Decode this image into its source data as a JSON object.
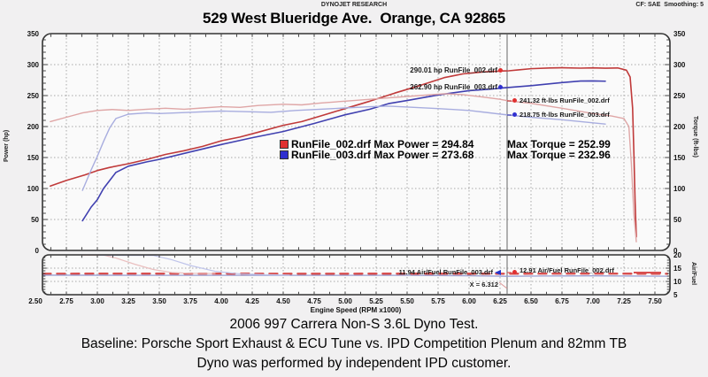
{
  "header": {
    "brand": "DYNOJET RESEARCH",
    "cf": "CF: SAE  Smoothing: 5",
    "title": "529 West Blueridge Ave.  Orange, CA 92865"
  },
  "legend": {
    "rows": [
      {
        "swatch": "#e03030",
        "text_power": "RunFile_002.drf Max Power = 294.84",
        "text_torque": "Max Torque = 252.99"
      },
      {
        "swatch": "#3030d0",
        "text_power": "RunFile_003.drf Max Power = 273.68",
        "text_torque": "Max Torque = 232.96"
      }
    ]
  },
  "annotations": {
    "hp_002": "290.01 hp RunFile_002.drf",
    "hp_003": "262.90 hp RunFile_003.drf",
    "tq_002": "241.32 ft-lbs RunFile_002.drf",
    "tq_003": "218.75 ft-lbs RunFile_003.drf",
    "af_003": "11.94 Air/Fuel RunFile_003.drf",
    "af_002": "12.91 Air/Fuel RunFile_002.drf",
    "cursor": "X = 6.312"
  },
  "caption": {
    "line1": "2006 997 Carrera Non-S 3.6L Dyno Test.",
    "line2": "Baseline: Porsche Sport Exhaust & ECU Tune vs. IPD Competition Plenum and 82mm TB",
    "line3": "Dyno was performed by independent IPD customer."
  },
  "chart_data": {
    "type": "line",
    "title": "529 West Blueridge Ave.  Orange, CA 92865",
    "x": {
      "label": "Engine Speed (RPM x1000)",
      "tick_values": [
        2.5,
        2.75,
        3.0,
        3.25,
        3.5,
        3.75,
        4.0,
        4.25,
        4.5,
        4.75,
        5.0,
        5.25,
        5.5,
        5.75,
        6.0,
        6.25,
        6.5,
        6.75,
        7.0,
        7.25,
        7.5
      ],
      "tick_labels": [
        "2.50",
        "2.75",
        "3.00",
        "3.25",
        "3.50",
        "3.75",
        "4.00",
        "4.25",
        "4.50",
        "4.75",
        "5.00",
        "5.25",
        "5.50",
        "5.75",
        "6.00",
        "6.25",
        "6.50",
        "6.75",
        "7.00",
        "7.25",
        "7.50"
      ]
    },
    "cursor": {
      "x": 6.312,
      "label": "X = 6.312"
    },
    "main_panel": {
      "y_left_label": "Power (hp)",
      "y_right_label": "Torque (ft-lbs)",
      "ylim": [
        0,
        350
      ],
      "yticks": [
        0,
        50,
        100,
        150,
        200,
        250,
        300,
        350
      ],
      "grid": true,
      "series": [
        {
          "id": "power-002",
          "name": "Power RunFile_002.drf",
          "color": "#c03a3a",
          "width": 1.6,
          "dash": "",
          "points": [
            [
              2.62,
              104
            ],
            [
              2.75,
              113
            ],
            [
              2.9,
              122
            ],
            [
              3.0,
              129
            ],
            [
              3.1,
              134
            ],
            [
              3.25,
              140
            ],
            [
              3.4,
              147
            ],
            [
              3.55,
              155
            ],
            [
              3.7,
              161
            ],
            [
              3.85,
              168
            ],
            [
              4.0,
              177
            ],
            [
              4.15,
              183
            ],
            [
              4.3,
              191
            ],
            [
              4.5,
              202
            ],
            [
              4.65,
              208
            ],
            [
              4.8,
              217
            ],
            [
              5.0,
              229
            ],
            [
              5.2,
              241
            ],
            [
              5.4,
              254
            ],
            [
              5.6,
              266
            ],
            [
              5.8,
              279
            ],
            [
              5.95,
              285
            ],
            [
              6.1,
              288
            ],
            [
              6.25,
              289.5
            ],
            [
              6.32,
              290.0
            ],
            [
              6.4,
              291.5
            ],
            [
              6.5,
              293.4
            ],
            [
              6.65,
              294.5
            ],
            [
              6.75,
              294.84
            ],
            [
              6.9,
              294.3
            ],
            [
              7.0,
              294.8
            ],
            [
              7.1,
              294.2
            ],
            [
              7.2,
              294.6
            ],
            [
              7.27,
              291
            ],
            [
              7.3,
              280
            ],
            [
              7.32,
              230
            ],
            [
              7.33,
              160
            ],
            [
              7.34,
              80
            ],
            [
              7.35,
              22
            ]
          ]
        },
        {
          "id": "power-003",
          "name": "Power RunFile_003.drf",
          "color": "#4040b0",
          "width": 1.6,
          "dash": "",
          "points": [
            [
              2.88,
              48
            ],
            [
              2.95,
              70
            ],
            [
              3.0,
              82
            ],
            [
              3.05,
              100
            ],
            [
              3.15,
              126
            ],
            [
              3.25,
              136
            ],
            [
              3.4,
              143
            ],
            [
              3.5,
              147
            ],
            [
              3.75,
              159
            ],
            [
              4.0,
              171
            ],
            [
              4.25,
              182
            ],
            [
              4.5,
              192
            ],
            [
              4.75,
              205
            ],
            [
              5.0,
              219
            ],
            [
              5.2,
              228
            ],
            [
              5.35,
              237
            ],
            [
              5.5,
              242
            ],
            [
              5.75,
              251
            ],
            [
              6.0,
              258
            ],
            [
              6.15,
              260
            ],
            [
              6.31,
              262.9
            ],
            [
              6.5,
              266
            ],
            [
              6.75,
              271
            ],
            [
              6.9,
              273.5
            ],
            [
              7.0,
              273.68
            ],
            [
              7.1,
              273.2
            ]
          ]
        },
        {
          "id": "torque-002",
          "name": "Torque RunFile_002.drf",
          "color": "#dfa6a6",
          "width": 1.4,
          "dash": "",
          "points": [
            [
              2.62,
              208
            ],
            [
              2.75,
              215
            ],
            [
              2.88,
              222
            ],
            [
              3.0,
              226
            ],
            [
              3.12,
              227.5
            ],
            [
              3.25,
              226
            ],
            [
              3.4,
              228
            ],
            [
              3.55,
              229.5
            ],
            [
              3.7,
              228
            ],
            [
              3.85,
              230
            ],
            [
              4.0,
              232
            ],
            [
              4.15,
              231
            ],
            [
              4.3,
              234
            ],
            [
              4.5,
              236
            ],
            [
              4.65,
              235
            ],
            [
              4.8,
              238
            ],
            [
              5.0,
              241
            ],
            [
              5.2,
              244
            ],
            [
              5.4,
              247
            ],
            [
              5.6,
              250
            ],
            [
              5.8,
              252.99
            ],
            [
              5.95,
              251.5
            ],
            [
              6.1,
              248
            ],
            [
              6.25,
              244
            ],
            [
              6.32,
              241.32
            ],
            [
              6.5,
              237.5
            ],
            [
              6.75,
              229.5
            ],
            [
              7.0,
              221
            ],
            [
              7.15,
              217
            ],
            [
              7.25,
              213
            ],
            [
              7.29,
              200
            ],
            [
              7.31,
              140
            ],
            [
              7.33,
              60
            ],
            [
              7.35,
              14
            ]
          ]
        },
        {
          "id": "torque-003",
          "name": "Torque RunFile_003.drf",
          "color": "#a8addf",
          "width": 1.4,
          "dash": "",
          "points": [
            [
              2.88,
              97
            ],
            [
              2.95,
              130
            ],
            [
              3.0,
              152
            ],
            [
              3.05,
              176
            ],
            [
              3.1,
              198
            ],
            [
              3.15,
              213
            ],
            [
              3.25,
              220
            ],
            [
              3.4,
              222
            ],
            [
              3.5,
              221
            ],
            [
              3.75,
              223
            ],
            [
              4.0,
              225
            ],
            [
              4.2,
              224
            ],
            [
              4.4,
              223
            ],
            [
              4.6,
              226
            ],
            [
              4.8,
              228
            ],
            [
              5.0,
              230
            ],
            [
              5.2,
              232
            ],
            [
              5.35,
              232.96
            ],
            [
              5.5,
              231.5
            ],
            [
              5.75,
              229
            ],
            [
              6.0,
              226
            ],
            [
              6.15,
              222.5
            ],
            [
              6.31,
              218.75
            ],
            [
              6.5,
              215
            ],
            [
              6.75,
              211
            ],
            [
              7.0,
              206
            ],
            [
              7.1,
              204
            ]
          ]
        }
      ]
    },
    "af_panel": {
      "y_right_label": "Air/Fuel",
      "ylim": [
        5,
        20
      ],
      "yticks": [
        5,
        10,
        15,
        20
      ],
      "grid": true,
      "series": [
        {
          "id": "af-002",
          "name": "Air/Fuel RunFile_002.drf",
          "color": "#d84f4f",
          "width": 2.4,
          "dash": "9 7",
          "points": [
            [
              2.56,
              12.9
            ],
            [
              3.5,
              12.95
            ],
            [
              4.5,
              12.9
            ],
            [
              5.5,
              12.92
            ],
            [
              6.31,
              12.91
            ],
            [
              7.0,
              12.95
            ],
            [
              7.6,
              12.88
            ]
          ]
        },
        {
          "id": "af-003",
          "name": "Air/Fuel RunFile_003.drf",
          "color": "#9aa0d2",
          "width": 1.3,
          "dash": "",
          "points": [
            [
              2.56,
              12.35
            ],
            [
              3.5,
              12.3
            ],
            [
              4.5,
              12.3
            ],
            [
              5.5,
              12.28
            ],
            [
              6.0,
              12.15
            ],
            [
              6.31,
              11.94
            ],
            [
              6.6,
              12.05
            ],
            [
              7.0,
              12.1
            ],
            [
              7.6,
              11.95
            ]
          ]
        },
        {
          "id": "af-002-rollin",
          "name": "Air/Fuel roll-in 002",
          "color": "#eabfbf",
          "width": 1.2,
          "dash": "",
          "points": [
            [
              2.88,
              19.9
            ],
            [
              3.05,
              19.9
            ],
            [
              3.15,
              18.8
            ],
            [
              3.3,
              16.5
            ],
            [
              3.45,
              14.5
            ],
            [
              3.6,
              13.35
            ],
            [
              3.75,
              13.05
            ],
            [
              3.95,
              12.95
            ]
          ]
        },
        {
          "id": "af-003-rollin",
          "name": "Air/Fuel roll-in 003",
          "color": "#bfc4ea",
          "width": 1.2,
          "dash": "",
          "points": [
            [
              3.02,
              19.85
            ],
            [
              3.45,
              19.8
            ],
            [
              3.6,
              18.2
            ],
            [
              3.75,
              16.0
            ],
            [
              3.95,
              13.8
            ],
            [
              4.15,
              12.85
            ],
            [
              4.35,
              12.55
            ],
            [
              4.55,
              12.4
            ]
          ]
        }
      ]
    }
  }
}
